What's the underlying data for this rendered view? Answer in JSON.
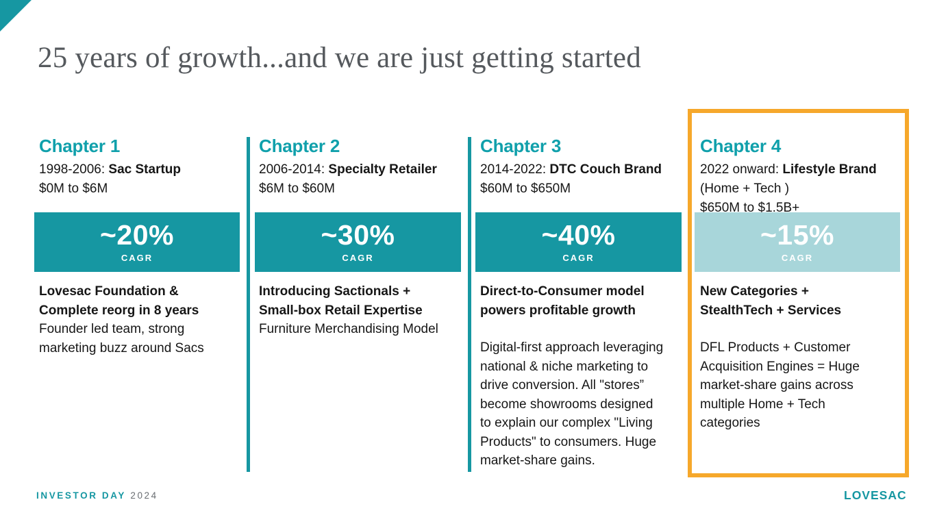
{
  "slide": {
    "title": "25 years of growth...and we are just getting started",
    "colors": {
      "teal": "#1697A2",
      "teal_heading": "#10A0AB",
      "teal_light": "#A8D6DA",
      "orange": "#F6A82B",
      "title_gray": "#55595D"
    },
    "chapters": [
      {
        "label": "Chapter 1",
        "period": "1998-2006: ",
        "period_bold": "Sac Startup",
        "revenue": "$0M to $6M",
        "cagr_value": "~20%",
        "cagr_label": "CAGR",
        "headline": "Lovesac Foundation &\nComplete reorg in 8 years",
        "body": "Founder led team, strong\nmarketing buzz around Sacs"
      },
      {
        "label": "Chapter 2",
        "period": "2006-2014: ",
        "period_bold": "Specialty Retailer",
        "revenue": "$6M to $60M",
        "cagr_value": "~30%",
        "cagr_label": "CAGR",
        "headline": "Introducing Sactionals +\nSmall-box Retail Expertise",
        "body": "Furniture Merchandising Model"
      },
      {
        "label": "Chapter 3",
        "period": "2014-2022: ",
        "period_bold": "DTC Couch Brand",
        "revenue": "$60M to $650M",
        "cagr_value": "~40%",
        "cagr_label": "CAGR",
        "headline": "Direct-to-Consumer model\npowers profitable growth",
        "body": "Digital-first approach leveraging\nnational & niche marketing to\ndrive conversion. All \"stores”\nbecome showrooms designed\nto explain our complex \"Living\nProducts\" to consumers. Huge\nmarket-share gains."
      },
      {
        "label": "Chapter 4",
        "period": "2022 onward: ",
        "period_bold": "Lifestyle Brand",
        "extra": "(Home + Tech )",
        "revenue": "$650M to $1.5B+",
        "cagr_value": "~15%",
        "cagr_label": "CAGR",
        "headline": "New Categories +\nStealthTech + Services",
        "body": "DFL Products + Customer\nAcquisition Engines = Huge\nmarket-share gains across\nmultiple Home + Tech\ncategories"
      }
    ],
    "footer": {
      "event": "INVESTOR DAY",
      "year": "2024",
      "logo": "LOVESAC"
    }
  }
}
